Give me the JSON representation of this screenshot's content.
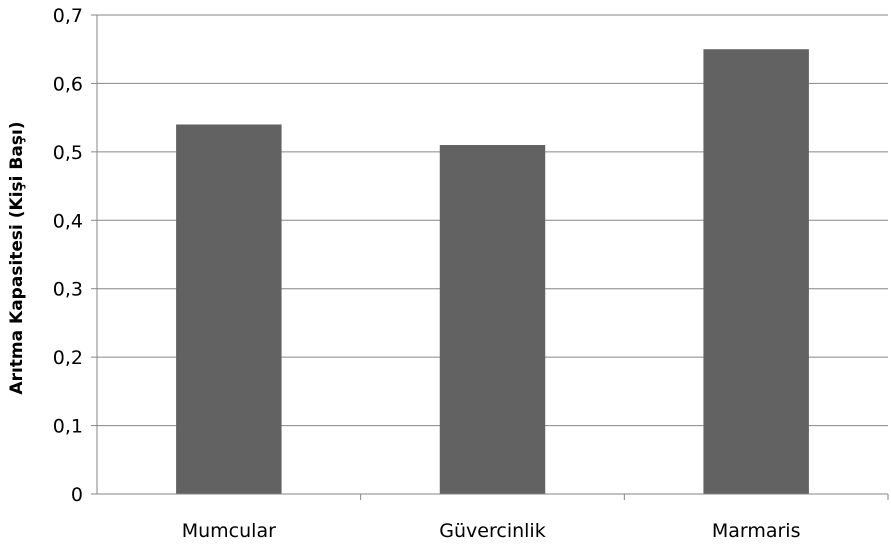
{
  "chart_data": {
    "type": "bar",
    "title": "",
    "xlabel": "",
    "ylabel": "Arıtma Kapasitesi (Kişi Başı)",
    "categories": [
      "Mumcular",
      "Güvercinlik",
      "Marmaris"
    ],
    "values": [
      0.54,
      0.51,
      0.65
    ],
    "ylim": [
      0,
      0.7
    ],
    "yticks": [
      "0",
      "0,1",
      "0,2",
      "0,3",
      "0,4",
      "0,5",
      "0,6",
      "0,7"
    ],
    "grid": true,
    "legend": "none",
    "bar_color": "#626262"
  }
}
